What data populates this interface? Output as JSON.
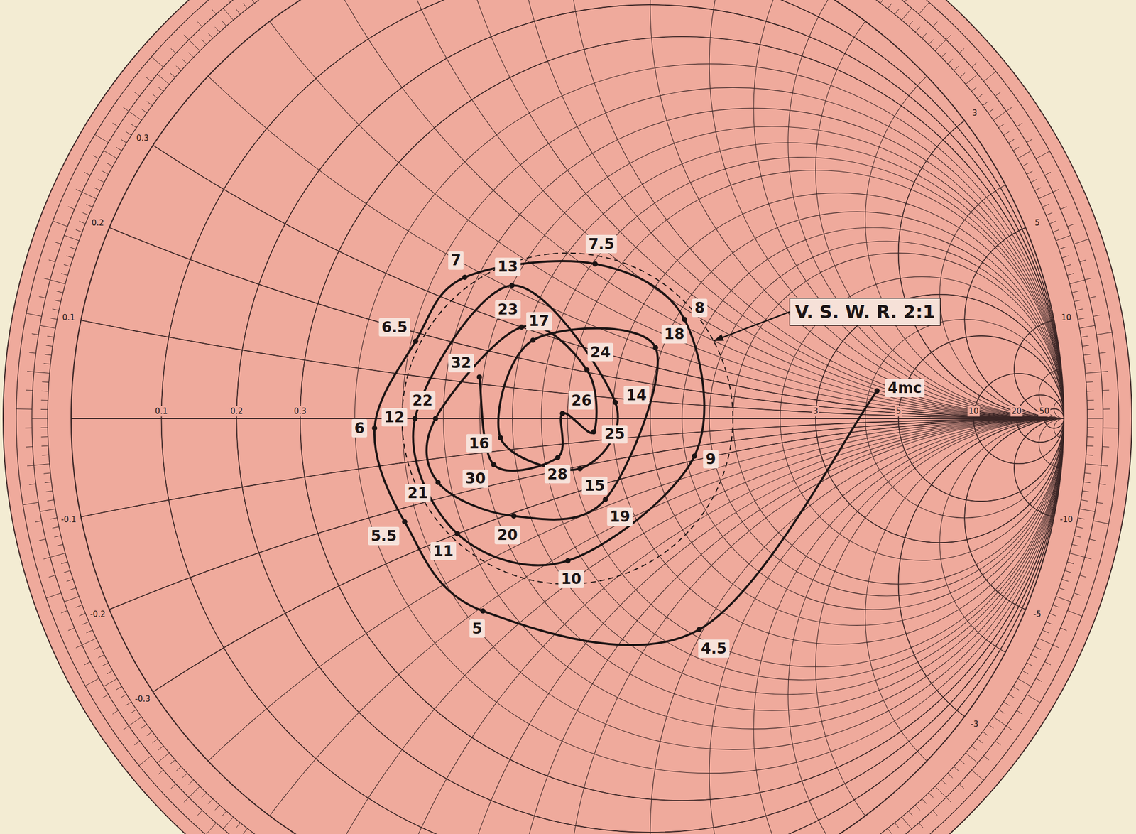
{
  "chart_data": {
    "type": "smith",
    "grid": true,
    "annotations": [
      {
        "text": "V. S. W. R. 2:1",
        "vswr": 2
      }
    ],
    "x": [
      {
        "value": 4,
        "label": "4mc"
      },
      4.5,
      5,
      5.5,
      6,
      6.5,
      7,
      7.5,
      8,
      9,
      10,
      11,
      12,
      13,
      14,
      15,
      16,
      17,
      18,
      19,
      20,
      21,
      22,
      23,
      24,
      25,
      26,
      28,
      30,
      32
    ],
    "series": [
      {
        "color": "#1c1414",
        "resistance": [
          4.2,
          1.04,
          0.54,
          0.47,
          0.44,
          0.51,
          0.57,
          0.91,
          1.45,
          1.66,
          0.85,
          0.58,
          0.53,
          0.7,
          1.21,
          1.03,
          0.76,
          0.83,
          1.36,
          1.1,
          0.75,
          0.57,
          0.58,
          0.78,
          1.06,
          1.11,
          0.98,
          0.95,
          0.73,
          0.69
        ],
        "reactance": [
          0.77,
          -1.18,
          -0.51,
          -0.23,
          -0.02,
          0.18,
          0.37,
          0.63,
          0.64,
          -0.27,
          -0.53,
          -0.3,
          0,
          0.41,
          0.08,
          -0.21,
          -0.06,
          0.27,
          0.41,
          -0.37,
          -0.31,
          -0.16,
          0,
          0.3,
          0.21,
          -0.06,
          0.02,
          -0.15,
          -0.14,
          0.12
        ]
      }
    ],
    "rticks": [
      0.1,
      0.2,
      0.3,
      3,
      5,
      10,
      20,
      50
    ],
    "xticks": [
      -10,
      -5,
      -3,
      -0.3,
      -0.2,
      -0.1,
      0.1,
      0.2,
      0.3,
      3,
      5,
      10
    ],
    "rgrid": [
      0.1,
      0.2,
      0.3,
      0.4,
      0.5,
      0.6,
      0.7,
      0.8,
      0.9,
      1,
      1.2,
      1.4,
      1.6,
      1.8,
      2,
      2.5,
      3,
      4,
      5,
      10,
      20,
      50
    ],
    "xgrid": [
      0.1,
      0.2,
      0.3,
      0.4,
      0.5,
      0.6,
      0.7,
      0.8,
      0.9,
      1,
      1.2,
      1.4,
      1.6,
      1.8,
      2,
      2.5,
      3,
      4,
      5,
      10,
      20,
      50,
      -0.1,
      -0.2,
      -0.3,
      -0.4,
      -0.5,
      -0.6,
      -0.7,
      -0.8,
      -0.9,
      -1,
      -1.2,
      -1.4,
      -1.6,
      -1.8,
      -2,
      -2.5,
      -3,
      -4,
      -5,
      -10,
      -20,
      -50
    ]
  }
}
